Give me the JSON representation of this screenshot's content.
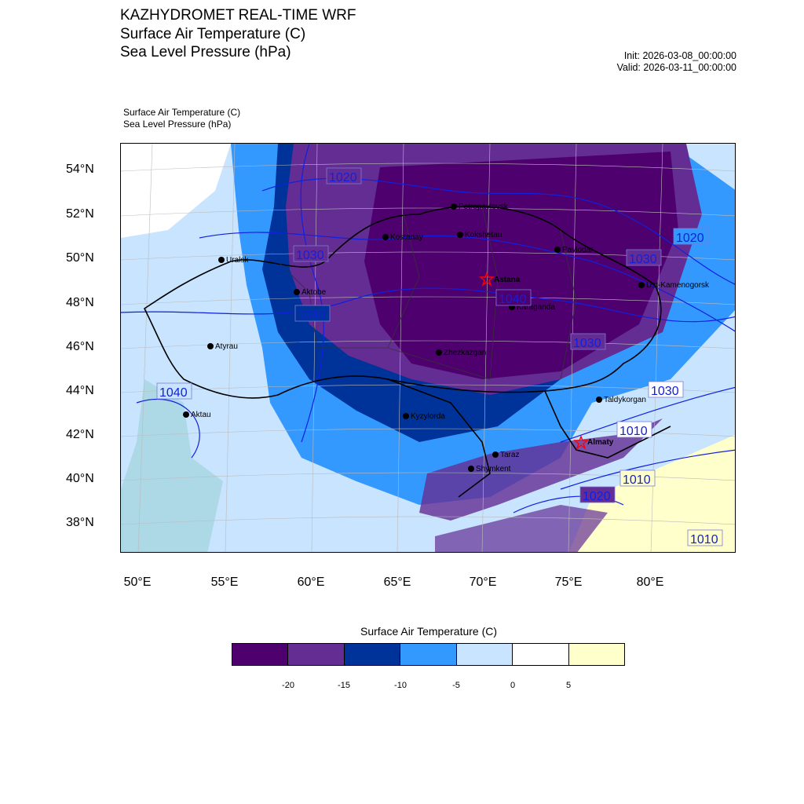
{
  "header": {
    "title_line1": "KAZHYDROMET REAL-TIME WRF",
    "title_line2": "Surface Air Temperature  (C)",
    "title_line3": "Sea Level Pressure  (hPa)",
    "init": "Init: 2026-03-08_00:00:00",
    "valid": "Valid: 2026-03-11_00:00:00"
  },
  "map_subtitle": {
    "line1": "Surface Air Temperature   (C)",
    "line2": "Sea Level Pressure   (hPa)"
  },
  "axes": {
    "lat_labels": [
      "54°N",
      "52°N",
      "50°N",
      "48°N",
      "46°N",
      "44°N",
      "42°N",
      "40°N",
      "38°N"
    ],
    "lon_labels": [
      "50°E",
      "55°E",
      "60°E",
      "65°E",
      "70°E",
      "75°E",
      "80°E"
    ]
  },
  "cities": [
    {
      "name": "Petropavlovsk",
      "capital": false
    },
    {
      "name": "Kostanay",
      "capital": false
    },
    {
      "name": "Kokshetau",
      "capital": false
    },
    {
      "name": "Uralsk",
      "capital": false
    },
    {
      "name": "Pavlodar",
      "capital": false
    },
    {
      "name": "Astana",
      "capital": true
    },
    {
      "name": "Aktobe",
      "capital": false
    },
    {
      "name": "Ust-Kamenogorsk",
      "capital": false
    },
    {
      "name": "Karaganda",
      "capital": false
    },
    {
      "name": "Atyrau",
      "capital": false
    },
    {
      "name": "Zhezkazgan",
      "capital": false
    },
    {
      "name": "Taldykorgan",
      "capital": false
    },
    {
      "name": "Aktau",
      "capital": false
    },
    {
      "name": "Kyzylorda",
      "capital": false
    },
    {
      "name": "Almaty",
      "capital": true
    },
    {
      "name": "Taraz",
      "capital": false
    },
    {
      "name": "Shymkent",
      "capital": false
    }
  ],
  "pressure_labels": [
    "1020",
    "1030",
    "1040",
    "1040",
    "1040",
    "1030",
    "1020",
    "1030",
    "1030",
    "1010",
    "1020",
    "1010",
    "1010"
  ],
  "colorbar": {
    "title": "Surface Air Temperature (C)",
    "colors": [
      "#4d006e",
      "#642d94",
      "#003399",
      "#3399ff",
      "#c8e4ff",
      "#ffffff",
      "#ffffcc"
    ],
    "tick_labels": [
      "-20",
      "-15",
      "-10",
      "-5",
      "0",
      "5"
    ]
  },
  "palette": {
    "water": "#add8e6",
    "isobar": "#1020e0",
    "border": "#000000",
    "capital_marker": "#ff0000"
  }
}
